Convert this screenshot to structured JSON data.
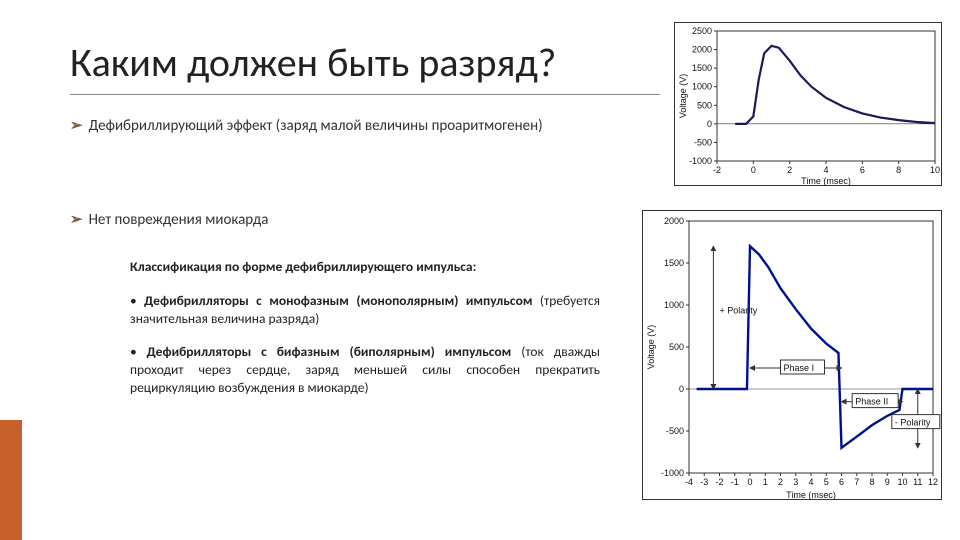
{
  "title": "Каким должен быть разряд?",
  "bullets": {
    "b1": "Дефибриллирующий эффект (заряд малой величины проаритмогенен)",
    "b2": "Нет повреждения миокарда"
  },
  "body": {
    "heading": "Классификация по форме дефибриллирующего импульса:",
    "p1_lead": "Дефибрилляторы с монофазным (монополярным) импульсом",
    "p1_rest": " (требуется значительная величина разряда)",
    "p2_lead": "Дефибрилляторы с бифазным (биполярным) импульсом",
    "p2_rest": " (ток дважды проходит через сердце, заряд меньшей силы способен прекратить рециркуляцию возбуждения в миокарде)"
  },
  "chart1": {
    "type": "line",
    "xlabel": "Time (msec)",
    "ylabel": "Voltage (V)",
    "xlim": [
      -2,
      10
    ],
    "xtick_step": 2,
    "ylim": [
      -1000,
      2500
    ],
    "ytick_step": 500,
    "xticks": [
      -2,
      0,
      2,
      4,
      6,
      8,
      10
    ],
    "yticks": [
      -1000,
      -500,
      0,
      500,
      1000,
      1500,
      2000,
      2500
    ],
    "line_color": "#1a1a5a",
    "line_width": 2.2,
    "background_color": "#ffffff",
    "axis_color": "#333333",
    "points_xy": [
      [
        -1.0,
        0
      ],
      [
        -0.4,
        0
      ],
      [
        0.0,
        200
      ],
      [
        0.3,
        1200
      ],
      [
        0.6,
        1900
      ],
      [
        1.0,
        2100
      ],
      [
        1.4,
        2050
      ],
      [
        2.0,
        1700
      ],
      [
        2.6,
        1300
      ],
      [
        3.2,
        1000
      ],
      [
        4.0,
        700
      ],
      [
        5.0,
        450
      ],
      [
        6.0,
        280
      ],
      [
        7.0,
        170
      ],
      [
        8.0,
        100
      ],
      [
        9.0,
        50
      ],
      [
        10.0,
        20
      ]
    ]
  },
  "chart2": {
    "type": "line",
    "xlabel": "Time (msec)",
    "ylabel": "Voltage (V)",
    "xlim": [
      -4,
      12
    ],
    "xtick_step": 1,
    "ylim": [
      -1000,
      2000
    ],
    "ytick_step": 500,
    "xticks": [
      -4,
      -3,
      -2,
      -1,
      0,
      1,
      2,
      3,
      4,
      5,
      6,
      7,
      8,
      9,
      10,
      11,
      12
    ],
    "yticks": [
      -1000,
      -500,
      0,
      500,
      1000,
      1500,
      2000
    ],
    "line_color": "#001090",
    "line_width": 2.4,
    "background_color": "#ffffff",
    "axis_color": "#333333",
    "labels": {
      "pos_polarity": "+ Polarity",
      "neg_polarity": "- Polarity",
      "phase1": "Phase I",
      "phase2": "Phase II"
    },
    "points_xy": [
      [
        -3.5,
        0
      ],
      [
        -0.2,
        0
      ],
      [
        0,
        1700
      ],
      [
        0.6,
        1600
      ],
      [
        1.2,
        1450
      ],
      [
        2.0,
        1200
      ],
      [
        3.0,
        950
      ],
      [
        4.0,
        720
      ],
      [
        5.0,
        540
      ],
      [
        5.8,
        430
      ],
      [
        6.0,
        -700
      ],
      [
        6.6,
        -620
      ],
      [
        7.2,
        -540
      ],
      [
        8.0,
        -430
      ],
      [
        9.0,
        -320
      ],
      [
        9.8,
        -250
      ],
      [
        10.0,
        0
      ],
      [
        12.0,
        0
      ]
    ]
  }
}
